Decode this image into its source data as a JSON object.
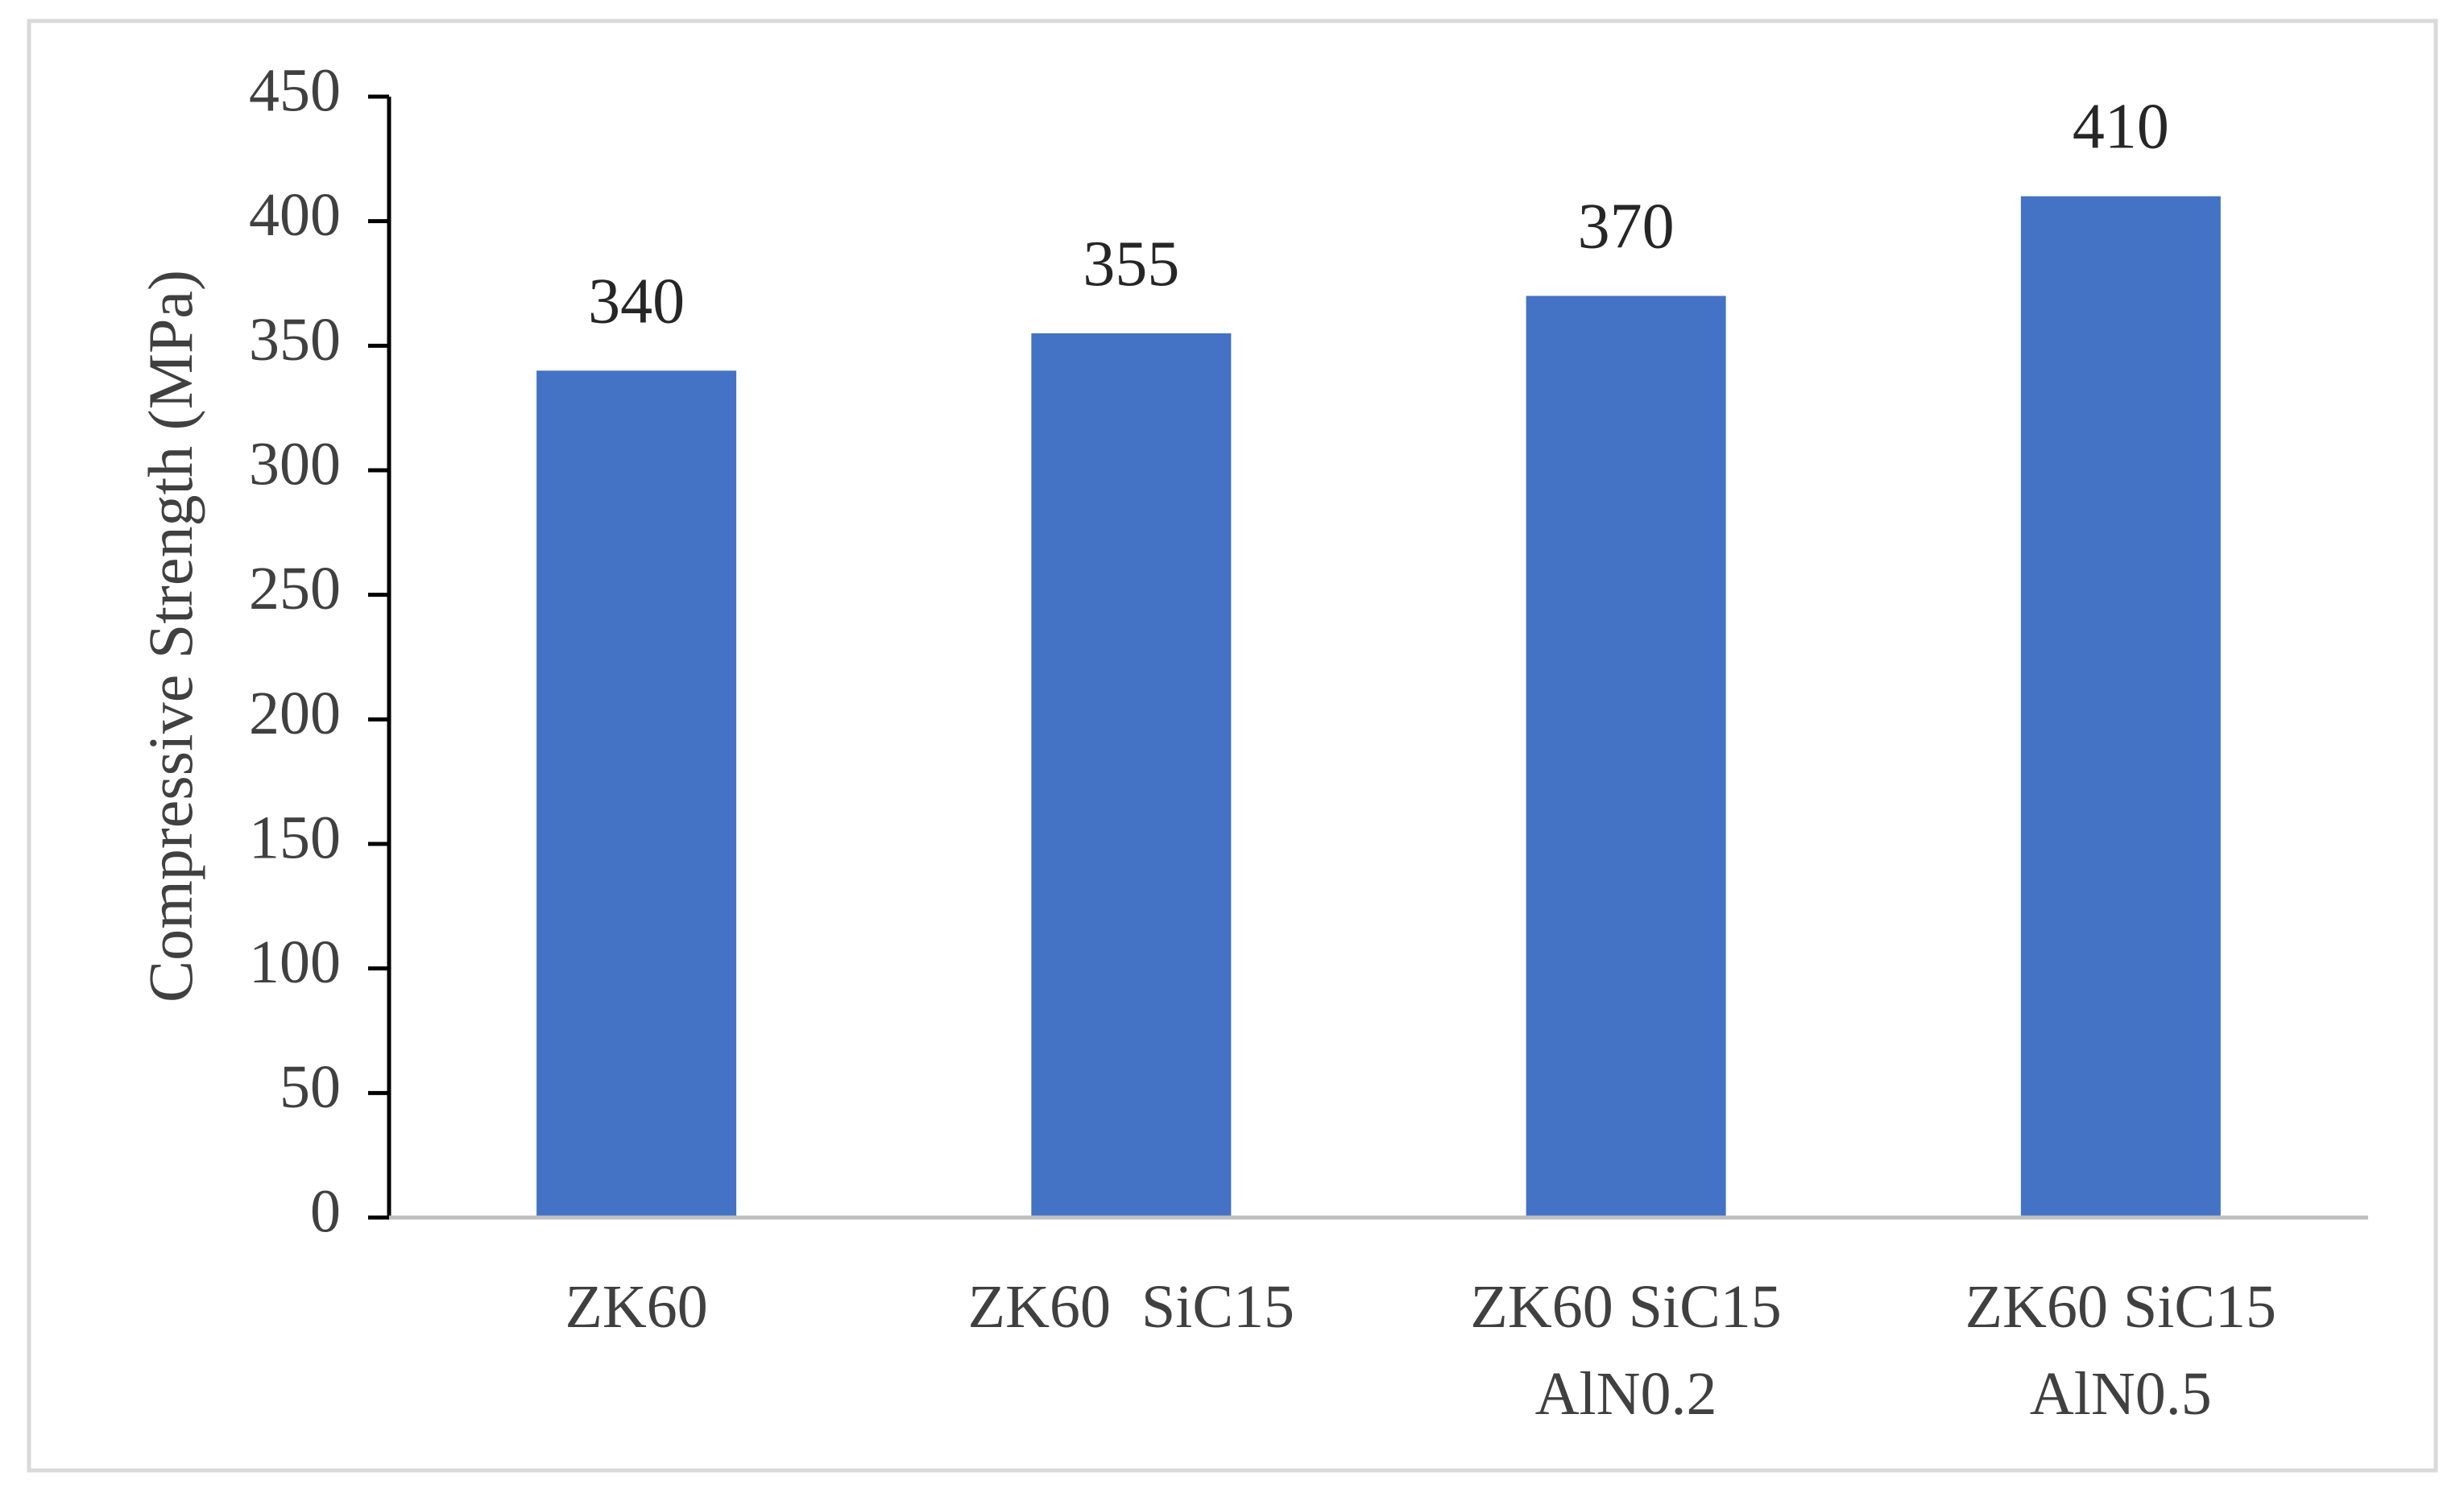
{
  "chart_data": {
    "type": "bar",
    "title": "",
    "xlabel": "",
    "ylabel": "Compressive  Strength  (MPa)",
    "categories": [
      [
        "ZK60"
      ],
      [
        "ZK60  SiC15"
      ],
      [
        "ZK60 SiC15",
        "AlN0.2"
      ],
      [
        "ZK60 SiC15",
        "AlN0.5"
      ]
    ],
    "values": [
      340,
      355,
      370,
      410
    ],
    "data_labels": [
      "340",
      "355",
      "370",
      "410"
    ],
    "ylim": [
      0,
      450
    ],
    "yticks": [
      0,
      50,
      100,
      150,
      200,
      250,
      300,
      350,
      400,
      450
    ],
    "grid": false,
    "legend": "none",
    "colors": {
      "bar": "#4472C4",
      "axis": "#000000",
      "baseline": "#BFBFBF",
      "frame": "#D9D9D9",
      "text": "#404040"
    }
  }
}
